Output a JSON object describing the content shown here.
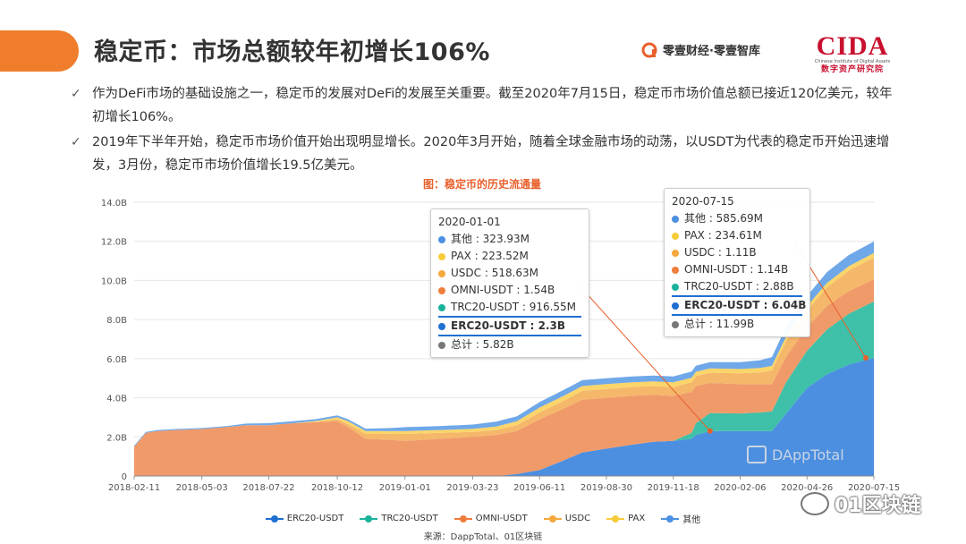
{
  "colors": {
    "accent": "#f07d2c",
    "title_orange": "#e8602c",
    "series": {
      "ERC20-USDT": "#4c8fe0",
      "TRC20-USDT": "#3ec1a8",
      "OMNI-USDT": "#f09a6a",
      "USDC": "#f5b76a",
      "PAX": "#fbd56a",
      "其他": "#6fa8e8"
    },
    "dots": {
      "ERC20-USDT": "#1f6fd1",
      "TRC20-USDT": "#1bb39b",
      "OMNI-USDT": "#ef7d3c",
      "USDC": "#f5a83c",
      "PAX": "#f7cb3a",
      "其他": "#4b90e2",
      "总计": "#777777"
    }
  },
  "header": {
    "title": "稳定币：市场总额较年初增长106%",
    "logo1_text": "零壹财经·零壹智库",
    "logo2_mark": "CIDA",
    "logo2_en": "Chinese Institute of Digital Assets",
    "logo2_cn": "数字资产研究院"
  },
  "bullets": [
    "作为DeFi市场的基础设施之一，稳定币的发展对DeFi的发展至关重要。截至2020年7月15日，稳定币市场价值总额已接近120亿美元，较年初增长106%。",
    "2019年下半年开始，稳定币市场价值开始出现明显增长。2020年3月开始，随着全球金融市场的动荡，以USDT为代表的稳定币开始迅速增发，3月份，稳定币市场价值增长19.5亿美元。"
  ],
  "chart_title": "图：稳定币的历史流通量",
  "tooltips": [
    {
      "date": "2020-01-01",
      "rows": [
        {
          "series": "其他",
          "label": "其他 : 323.93M"
        },
        {
          "series": "PAX",
          "label": "PAX : 223.52M"
        },
        {
          "series": "USDC",
          "label": "USDC : 518.63M"
        },
        {
          "series": "OMNI-USDT",
          "label": "OMNI-USDT : 1.54B"
        },
        {
          "series": "TRC20-USDT",
          "label": "TRC20-USDT : 916.55M"
        },
        {
          "series": "ERC20-USDT",
          "label": "ERC20-USDT : 2.3B",
          "highlight": true
        },
        {
          "series": "总计",
          "label": "总计 : 5.82B"
        }
      ]
    },
    {
      "date": "2020-07-15",
      "rows": [
        {
          "series": "其他",
          "label": "其他 : 585.69M"
        },
        {
          "series": "PAX",
          "label": "PAX : 234.61M"
        },
        {
          "series": "USDC",
          "label": "USDC : 1.11B"
        },
        {
          "series": "OMNI-USDT",
          "label": "OMNI-USDT : 1.14B"
        },
        {
          "series": "TRC20-USDT",
          "label": "TRC20-USDT : 2.88B"
        },
        {
          "series": "ERC20-USDT",
          "label": "ERC20-USDT : 6.04B",
          "highlight": true
        },
        {
          "series": "总计",
          "label": "总计 : 11.99B"
        }
      ]
    }
  ],
  "chart_data": {
    "type": "area",
    "stacked": true,
    "title": "图：稳定币的历史流通量",
    "x_ticks": [
      "2018-02-11",
      "2018-05-03",
      "2018-07-22",
      "2018-10-12",
      "2019-01-01",
      "2019-03-23",
      "2019-06-11",
      "2019-08-30",
      "2019-11-18",
      "2020-02-06",
      "2020-04-26",
      "2020-07-15"
    ],
    "y_ticks": [
      "0",
      "2.0B",
      "4.0B",
      "6.0B",
      "8.0B",
      "10.0B",
      "12.0B",
      "14.0B"
    ],
    "ylim": [
      0,
      14
    ],
    "y_unit": "B",
    "x": [
      "2018-02-11",
      "2018-02-25",
      "2018-03-11",
      "2018-04-01",
      "2018-05-03",
      "2018-06-01",
      "2018-06-25",
      "2018-07-22",
      "2018-08-20",
      "2018-09-15",
      "2018-10-12",
      "2018-10-25",
      "2018-11-15",
      "2018-12-15",
      "2019-01-01",
      "2019-02-10",
      "2019-03-23",
      "2019-04-20",
      "2019-05-15",
      "2019-06-11",
      "2019-07-10",
      "2019-08-01",
      "2019-08-30",
      "2019-09-30",
      "2019-10-25",
      "2019-11-18",
      "2019-12-10",
      "2019-12-15",
      "2020-01-01",
      "2020-02-06",
      "2020-03-01",
      "2020-03-15",
      "2020-04-01",
      "2020-04-26",
      "2020-05-20",
      "2020-06-15",
      "2020-07-15"
    ],
    "series": [
      {
        "name": "ERC20-USDT",
        "values": [
          0,
          0,
          0,
          0,
          0,
          0,
          0,
          0,
          0,
          0,
          0,
          0,
          0,
          0,
          0,
          0,
          0,
          0,
          0.1,
          0.3,
          0.8,
          1.2,
          1.4,
          1.6,
          1.75,
          1.8,
          1.9,
          2.1,
          2.3,
          2.3,
          2.3,
          2.3,
          3.2,
          4.5,
          5.2,
          5.7,
          6.04
        ]
      },
      {
        "name": "TRC20-USDT",
        "values": [
          0,
          0,
          0,
          0,
          0,
          0,
          0,
          0,
          0,
          0,
          0,
          0,
          0,
          0,
          0,
          0,
          0,
          0,
          0,
          0,
          0,
          0,
          0,
          0,
          0,
          0,
          0.3,
          0.6,
          0.92,
          0.9,
          0.95,
          1.0,
          1.6,
          1.9,
          2.3,
          2.6,
          2.88
        ]
      },
      {
        "name": "OMNI-USDT",
        "values": [
          1.5,
          2.2,
          2.3,
          2.35,
          2.4,
          2.5,
          2.6,
          2.6,
          2.7,
          2.75,
          2.8,
          2.5,
          1.9,
          1.85,
          1.8,
          1.9,
          2.0,
          2.1,
          2.2,
          2.6,
          2.65,
          2.7,
          2.6,
          2.5,
          2.4,
          2.3,
          2.1,
          1.9,
          1.54,
          1.5,
          1.45,
          1.4,
          1.3,
          1.2,
          1.2,
          1.15,
          1.14
        ]
      },
      {
        "name": "USDC",
        "values": [
          0,
          0,
          0,
          0,
          0,
          0,
          0,
          0,
          0,
          0,
          0.1,
          0.15,
          0.25,
          0.3,
          0.35,
          0.3,
          0.25,
          0.25,
          0.3,
          0.35,
          0.4,
          0.45,
          0.45,
          0.45,
          0.45,
          0.45,
          0.5,
          0.5,
          0.52,
          0.55,
          0.6,
          0.7,
          0.8,
          0.85,
          0.95,
          1.05,
          1.11
        ]
      },
      {
        "name": "PAX",
        "values": [
          0,
          0,
          0,
          0,
          0,
          0,
          0,
          0,
          0,
          0.05,
          0.1,
          0.15,
          0.15,
          0.15,
          0.15,
          0.15,
          0.16,
          0.18,
          0.2,
          0.25,
          0.25,
          0.25,
          0.25,
          0.24,
          0.24,
          0.24,
          0.23,
          0.23,
          0.22,
          0.22,
          0.22,
          0.23,
          0.23,
          0.23,
          0.23,
          0.23,
          0.23
        ]
      },
      {
        "name": "其他",
        "values": [
          0.05,
          0.05,
          0.05,
          0.05,
          0.05,
          0.05,
          0.08,
          0.1,
          0.1,
          0.1,
          0.1,
          0.1,
          0.12,
          0.15,
          0.2,
          0.2,
          0.22,
          0.25,
          0.25,
          0.28,
          0.3,
          0.3,
          0.3,
          0.3,
          0.3,
          0.3,
          0.31,
          0.31,
          0.32,
          0.35,
          0.4,
          0.45,
          0.5,
          0.52,
          0.55,
          0.57,
          0.59
        ]
      }
    ],
    "legend": [
      "ERC20-USDT",
      "TRC20-USDT",
      "OMNI-USDT",
      "USDC",
      "PAX",
      "其他"
    ],
    "legend_position": "bottom",
    "grid": true
  },
  "source": "来源：DappTotal、01区块链",
  "watermark1": "DAppTotal",
  "watermark2": "01区块链"
}
